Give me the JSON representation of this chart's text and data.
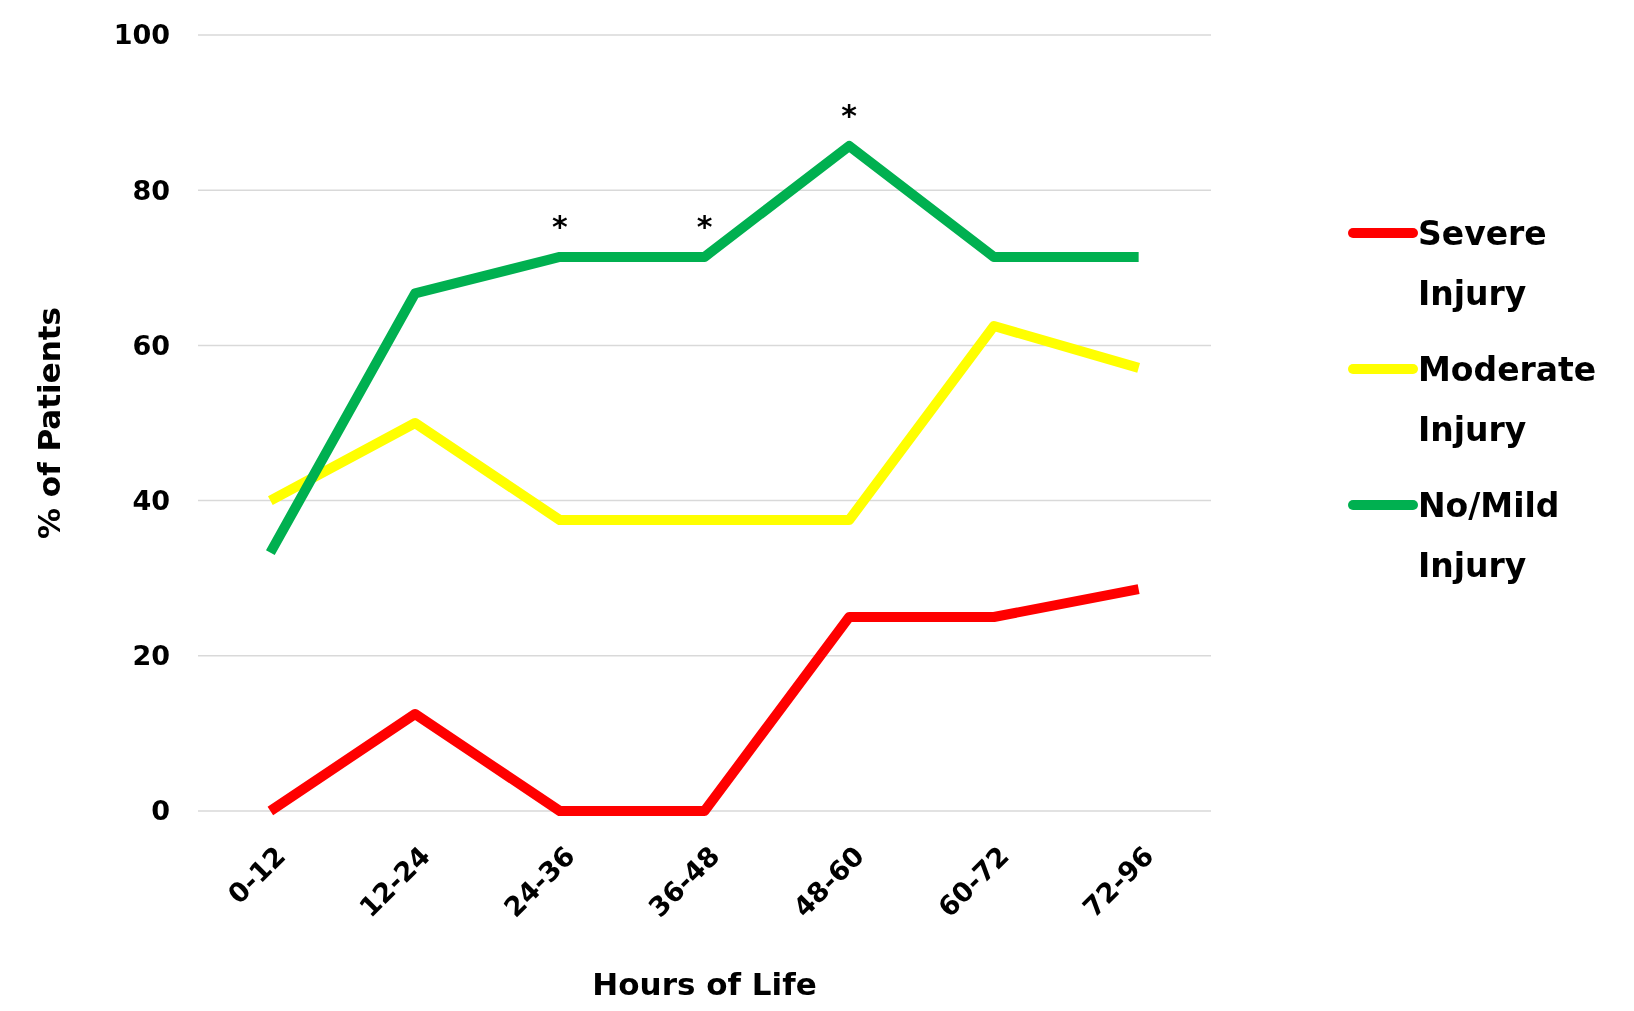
{
  "chart_data": {
    "type": "line",
    "xlabel": "Hours of Life",
    "ylabel": "% of Patients",
    "categories": [
      "0-12",
      "12-24",
      "24-36",
      "36-48",
      "48-60",
      "60-72",
      "72-96"
    ],
    "series": [
      {
        "name": "Severe Injury",
        "color": "#ff0000",
        "values": [
          0,
          12.5,
          0,
          0,
          25,
          25,
          28.6
        ]
      },
      {
        "name": "Moderate Injury",
        "color": "#ffff00",
        "values": [
          40,
          50,
          37.5,
          37.5,
          37.5,
          62.5,
          57.1
        ]
      },
      {
        "name": "No/Mild Injury",
        "color": "#00b050",
        "values": [
          33.3,
          66.7,
          71.4,
          71.4,
          85.7,
          71.4,
          71.4
        ]
      }
    ],
    "ylim": [
      0,
      100
    ],
    "yticks": [
      0,
      20,
      40,
      60,
      80,
      100
    ],
    "grid": "y",
    "legend": "right",
    "marker": "none",
    "line_style": "solid",
    "annotations": [
      {
        "text": "*",
        "x": "24-36",
        "y": 71.4
      },
      {
        "text": "*",
        "x": "36-48",
        "y": 71.4
      },
      {
        "text": "*",
        "x": "48-60",
        "y": 85.7
      }
    ]
  }
}
